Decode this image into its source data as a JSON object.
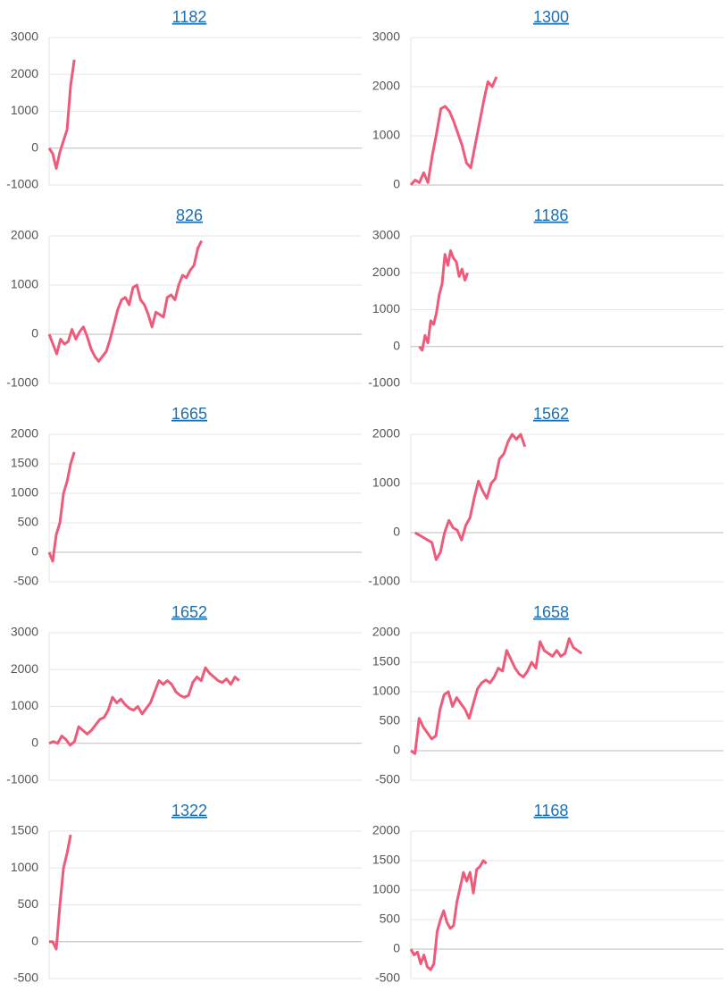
{
  "chart_data": [
    {
      "type": "line",
      "title": "1182",
      "color": "#ee5a7a",
      "xlim": [
        0,
        87
      ],
      "ylim": [
        -1000,
        3000
      ],
      "yticks": [
        -1000,
        0,
        1000,
        2000,
        3000
      ],
      "grid": true,
      "values": [
        0,
        -150,
        -550,
        -100,
        200,
        500,
        1700,
        2400
      ]
    },
    {
      "type": "line",
      "title": "1300",
      "color": "#ee5a7a",
      "xlim": [
        0,
        73
      ],
      "ylim": [
        0,
        3000
      ],
      "yticks": [
        0,
        1000,
        2000,
        3000
      ],
      "grid": true,
      "values": [
        0,
        100,
        50,
        250,
        50,
        600,
        1050,
        1550,
        1600,
        1500,
        1300,
        1050,
        800,
        450,
        350,
        800,
        1250,
        1700,
        2100,
        2000,
        2200
      ]
    },
    {
      "type": "line",
      "title": "826",
      "color": "#ee5a7a",
      "xlim": [
        0,
        82
      ],
      "ylim": [
        -1000,
        2000
      ],
      "yticks": [
        -1000,
        0,
        1000,
        2000
      ],
      "grid": true,
      "values": [
        0,
        -200,
        -400,
        -100,
        -200,
        -150,
        100,
        -100,
        50,
        150,
        -50,
        -300,
        -450,
        -550,
        -450,
        -350,
        -100,
        200,
        500,
        700,
        750,
        600,
        950,
        1000,
        700,
        600,
        400,
        150,
        450,
        400,
        350,
        750,
        800,
        700,
        1000,
        1200,
        1150,
        1300,
        1400,
        1750,
        1900
      ]
    },
    {
      "type": "line",
      "title": "1186",
      "color": "#ee5a7a",
      "xlim": [
        -3,
        107
      ],
      "ylim": [
        -1000,
        3000
      ],
      "yticks": [
        -1000,
        0,
        1000,
        2000,
        3000
      ],
      "grid": true,
      "values": [
        0,
        -100,
        300,
        100,
        700,
        600,
        900,
        1400,
        1700,
        2500,
        2200,
        2600,
        2400,
        2300,
        1900,
        2100,
        1800,
        2000
      ]
    },
    {
      "type": "line",
      "title": "1665",
      "color": "#ee5a7a",
      "xlim": [
        0,
        87
      ],
      "ylim": [
        -500,
        2000
      ],
      "yticks": [
        -500,
        0,
        500,
        1000,
        1500,
        2000
      ],
      "grid": true,
      "values": [
        0,
        -150,
        300,
        500,
        1000,
        1200,
        1500,
        1700
      ]
    },
    {
      "type": "line",
      "title": "1562",
      "color": "#ee5a7a",
      "xlim": [
        -1,
        73
      ],
      "ylim": [
        -1000,
        2000
      ],
      "yticks": [
        -1000,
        0,
        1000,
        2000
      ],
      "grid": true,
      "values": [
        0,
        -50,
        -100,
        -150,
        -200,
        -550,
        -400,
        0,
        250,
        100,
        50,
        -150,
        150,
        300,
        700,
        1050,
        850,
        700,
        1000,
        1100,
        1500,
        1600,
        1850,
        2000,
        1900,
        2000,
        1750
      ]
    },
    {
      "type": "line",
      "title": "1652",
      "color": "#ee5a7a",
      "xlim": [
        0,
        74
      ],
      "ylim": [
        -1000,
        3000
      ],
      "yticks": [
        -1000,
        0,
        1000,
        2000,
        3000
      ],
      "grid": true,
      "values": [
        0,
        50,
        0,
        200,
        100,
        -50,
        50,
        450,
        350,
        250,
        350,
        500,
        650,
        700,
        900,
        1250,
        1100,
        1200,
        1050,
        950,
        900,
        1000,
        800,
        950,
        1100,
        1400,
        1700,
        1600,
        1700,
        1600,
        1400,
        1300,
        1250,
        1300,
        1650,
        1800,
        1700,
        2050,
        1900,
        1800,
        1700,
        1650,
        1750,
        1600,
        1800,
        1700
      ]
    },
    {
      "type": "line",
      "title": "1658",
      "color": "#ee5a7a",
      "xlim": [
        0,
        75
      ],
      "ylim": [
        -500,
        2000
      ],
      "yticks": [
        -500,
        0,
        500,
        1000,
        1500,
        2000
      ],
      "grid": true,
      "values": [
        0,
        -50,
        550,
        400,
        300,
        200,
        250,
        700,
        950,
        1000,
        750,
        900,
        800,
        700,
        550,
        800,
        1050,
        1150,
        1200,
        1150,
        1250,
        1400,
        1350,
        1700,
        1550,
        1400,
        1300,
        1250,
        1350,
        1500,
        1400,
        1850,
        1700,
        1650,
        1600,
        1700,
        1600,
        1650,
        1900,
        1750,
        1700,
        1650
      ]
    },
    {
      "type": "line",
      "title": "1322",
      "color": "#ee5a7a",
      "xlim": [
        0,
        87
      ],
      "ylim": [
        -500,
        1500
      ],
      "yticks": [
        -500,
        0,
        500,
        1000,
        1500
      ],
      "grid": true,
      "values": [
        0,
        0,
        -100,
        500,
        1000,
        1200,
        1450
      ]
    },
    {
      "type": "line",
      "title": "1168",
      "color": "#ee5a7a",
      "xlim": [
        0,
        95
      ],
      "ylim": [
        -500,
        2000
      ],
      "yticks": [
        -500,
        0,
        500,
        1000,
        1500,
        2000
      ],
      "grid": true,
      "values": [
        0,
        -100,
        -50,
        -250,
        -100,
        -300,
        -350,
        -250,
        300,
        500,
        650,
        450,
        350,
        400,
        800,
        1050,
        1300,
        1150,
        1300,
        950,
        1350,
        1400,
        1500,
        1450
      ]
    }
  ]
}
